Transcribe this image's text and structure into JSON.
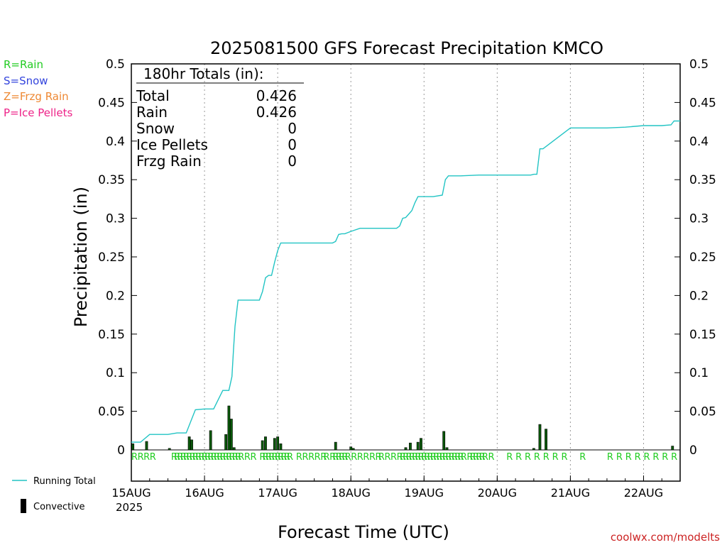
{
  "chart_data": {
    "type": "bar",
    "title": "2025081500 GFS Forecast Precipitation KMCO",
    "xlabel": "Forecast Time (UTC)",
    "ylabel": "Precipitation (in)",
    "ylim": [
      0,
      0.5
    ],
    "yticks": [
      "0",
      "0.05",
      "0.1",
      "0.15",
      "0.2",
      "0.25",
      "0.3",
      "0.35",
      "0.4",
      "0.45",
      "0.5"
    ],
    "xlim_hours": [
      0,
      180
    ],
    "xticks": [
      {
        "hour": 0,
        "label": "15AUG"
      },
      {
        "hour": 24,
        "label": "16AUG"
      },
      {
        "hour": 48,
        "label": "17AUG"
      },
      {
        "hour": 72,
        "label": "18AUG"
      },
      {
        "hour": 96,
        "label": "19AUG"
      },
      {
        "hour": 120,
        "label": "20AUG"
      },
      {
        "hour": 144,
        "label": "21AUG"
      },
      {
        "hour": 168,
        "label": "22AUG"
      }
    ],
    "start_year": "2025",
    "totals": {
      "heading": "180hr Totals (in):",
      "rows": [
        {
          "label": "Total",
          "value": "0.426"
        },
        {
          "label": "Rain",
          "value": "0.426"
        },
        {
          "label": "Snow",
          "value": "0"
        },
        {
          "label": "Ice Pellets",
          "value": "0"
        },
        {
          "label": "Frzg Rain",
          "value": "0"
        }
      ]
    },
    "type_legend": [
      {
        "text": "R=Rain",
        "color": "#22cc22"
      },
      {
        "text": "S=Snow",
        "color": "#3344dd"
      },
      {
        "text": "Z=Frzg Rain",
        "color": "#ee8833"
      },
      {
        "text": "P=Ice Pellets",
        "color": "#ee2288"
      }
    ],
    "series_legend": [
      {
        "text": "Running Total",
        "kind": "line",
        "color": "#22c4c4"
      },
      {
        "text": "Convective",
        "kind": "bar",
        "color": "#000000"
      }
    ],
    "series": [
      {
        "name": "Running Total",
        "kind": "line",
        "color": "#22c4c4",
        "x": [
          0,
          3,
          6,
          9,
          12,
          15,
          18,
          21,
          24,
          27,
          30,
          31,
          32,
          33,
          33.5,
          34,
          35,
          36,
          39,
          42,
          43,
          44,
          45,
          46,
          47,
          48,
          49,
          51,
          54,
          57,
          60,
          63,
          66,
          67,
          68,
          69,
          70,
          72,
          75,
          78,
          81,
          84,
          87,
          88,
          89,
          90,
          92,
          93,
          94,
          96,
          99,
          102,
          103,
          104,
          105,
          108,
          114,
          120,
          126,
          131,
          132,
          133,
          134,
          135,
          144,
          150,
          156,
          162,
          168,
          174,
          177,
          178,
          180
        ],
        "y": [
          0.01,
          0.01,
          0.02,
          0.02,
          0.02,
          0.022,
          0.022,
          0.052,
          0.053,
          0.053,
          0.077,
          0.077,
          0.077,
          0.095,
          0.13,
          0.16,
          0.194,
          0.194,
          0.194,
          0.194,
          0.205,
          0.223,
          0.226,
          0.226,
          0.243,
          0.258,
          0.268,
          0.268,
          0.268,
          0.268,
          0.268,
          0.268,
          0.268,
          0.27,
          0.279,
          0.28,
          0.28,
          0.283,
          0.287,
          0.287,
          0.287,
          0.287,
          0.287,
          0.29,
          0.3,
          0.301,
          0.31,
          0.32,
          0.328,
          0.328,
          0.328,
          0.33,
          0.35,
          0.355,
          0.355,
          0.355,
          0.356,
          0.356,
          0.356,
          0.356,
          0.357,
          0.357,
          0.39,
          0.39,
          0.417,
          0.417,
          0.417,
          0.418,
          0.42,
          0.42,
          0.421,
          0.426,
          0.426
        ]
      },
      {
        "name": "Convective",
        "kind": "bar",
        "color": "#000000",
        "x": [
          0.5,
          5,
          12.5,
          19,
          19.8,
          26,
          31,
          32,
          32.8,
          33.7,
          43,
          44,
          47,
          48,
          49,
          67,
          72,
          72.8,
          90,
          91.5,
          94,
          95,
          102.5,
          103.5,
          132,
          134,
          136,
          177.5
        ],
        "y": [
          0.008,
          0.011,
          0.002,
          0.017,
          0.013,
          0.025,
          0.02,
          0.057,
          0.04,
          0.003,
          0.012,
          0.017,
          0.015,
          0.017,
          0.008,
          0.01,
          0.004,
          0.002,
          0.003,
          0.009,
          0.01,
          0.015,
          0.024,
          0.003,
          0.002,
          0.033,
          0.027,
          0.005
        ]
      }
    ],
    "precip_type_marks": {
      "letter": "R",
      "color": "#22cc22",
      "hours": [
        0,
        2,
        4,
        6,
        13,
        14,
        15,
        16,
        17,
        18,
        19,
        20,
        21,
        22,
        23,
        24,
        25,
        26,
        27,
        28,
        29,
        30,
        31,
        32,
        33,
        34,
        35,
        37,
        39,
        42,
        43,
        44,
        45,
        46,
        47,
        48,
        49,
        50,
        51,
        54,
        56,
        58,
        60,
        62,
        63,
        65,
        66,
        67,
        68,
        69,
        70,
        72,
        74,
        76,
        78,
        80,
        81,
        83,
        85,
        87,
        88,
        89,
        90,
        91,
        92,
        93,
        94,
        95,
        96,
        97,
        98,
        99,
        100,
        101,
        102,
        103,
        104,
        105,
        106,
        107,
        108,
        110,
        111,
        112,
        113,
        114,
        115,
        117,
        123,
        126,
        129,
        132,
        135,
        138,
        141,
        147,
        156,
        159,
        162,
        165,
        168,
        171,
        174,
        177
      ]
    },
    "credit": "coolwx.com/modelts"
  }
}
